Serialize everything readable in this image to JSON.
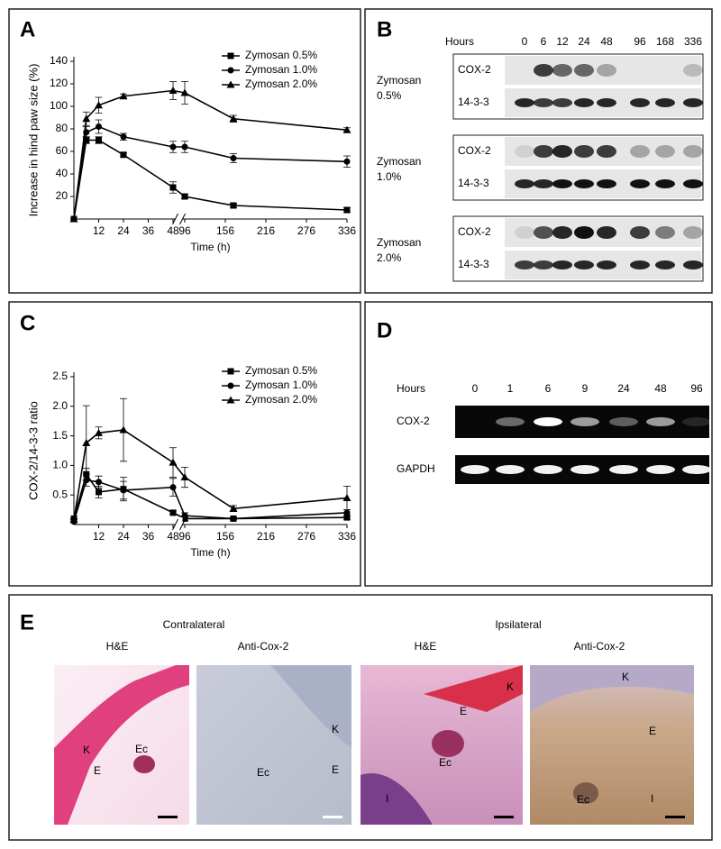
{
  "panels": {
    "a": "A",
    "b": "B",
    "c": "C",
    "d": "D",
    "e": "E"
  },
  "chart_data": [
    {
      "type": "line",
      "y_label": "Increase in hind paw size (%)",
      "x_label": "Time (h)",
      "x": [
        0,
        6,
        12,
        24,
        48,
        96,
        168,
        336
      ],
      "x_segments": [
        [
          0,
          48
        ],
        [
          96,
          336
        ]
      ],
      "xticks": [
        12,
        24,
        36,
        48,
        96,
        156,
        216,
        276,
        336
      ],
      "ylim": [
        0,
        140
      ],
      "yticks": [
        20,
        40,
        60,
        80,
        100,
        120,
        140
      ],
      "legend": "upper right",
      "series": [
        {
          "name": "Zymosan 0.5%",
          "marker": "square",
          "color": "#000000",
          "values": [
            0,
            70,
            70,
            57,
            28,
            20,
            12,
            8
          ],
          "errors": [
            0,
            3,
            3,
            2,
            5,
            2,
            2,
            2
          ]
        },
        {
          "name": "Zymosan 1.0%",
          "marker": "circle",
          "color": "#000000",
          "values": [
            0,
            77,
            82,
            73,
            64,
            64,
            54,
            51
          ],
          "errors": [
            0,
            5,
            6,
            3,
            5,
            5,
            4,
            5
          ]
        },
        {
          "name": "Zymosan 2.0%",
          "marker": "triangle",
          "color": "#000000",
          "values": [
            0,
            89,
            101,
            109,
            114,
            112,
            89,
            79
          ],
          "errors": [
            0,
            6,
            7,
            2,
            8,
            10,
            3,
            2
          ]
        }
      ]
    },
    {
      "type": "line",
      "y_label": "COX-2/14-3-3 ratio",
      "x_label": "Time (h)",
      "x": [
        0,
        6,
        12,
        24,
        48,
        96,
        168,
        336
      ],
      "x_segments": [
        [
          0,
          48
        ],
        [
          96,
          336
        ]
      ],
      "xticks": [
        12,
        24,
        36,
        48,
        96,
        156,
        216,
        276,
        336
      ],
      "ylim": [
        0,
        2.5
      ],
      "yticks": [
        0.5,
        {
          "value": 1,
          "label": "1.0"
        },
        1.5,
        {
          "value": 2,
          "label": "2.0"
        },
        2.5
      ],
      "legend": "upper right",
      "series": [
        {
          "name": "Zymosan 0.5%",
          "marker": "square",
          "color": "#000000",
          "values": [
            0.1,
            0.85,
            0.55,
            0.6,
            0.2,
            0.1,
            0.1,
            0.12
          ],
          "errors": [
            0,
            0.1,
            0.1,
            0.2,
            0.03,
            0.03,
            0.02,
            0.03
          ]
        },
        {
          "name": "Zymosan 1.0%",
          "marker": "circle",
          "color": "#000000",
          "values": [
            0.05,
            0.75,
            0.72,
            0.58,
            0.63,
            0.15,
            0.1,
            0.2
          ],
          "errors": [
            0,
            0.1,
            0.1,
            0.15,
            0.15,
            0.05,
            0.02,
            0.05
          ]
        },
        {
          "name": "Zymosan 2.0%",
          "marker": "triangle",
          "color": "#000000",
          "values": [
            0.08,
            1.38,
            1.55,
            1.6,
            1.05,
            0.8,
            0.27,
            0.45
          ],
          "errors": [
            0,
            0.63,
            0.1,
            0.53,
            0.25,
            0.17,
            0.05,
            0.2
          ]
        }
      ]
    }
  ],
  "western_blot": {
    "header": "Hours",
    "lanes": [
      "0",
      "6",
      "12",
      "24",
      "48",
      "96",
      "168",
      "336"
    ],
    "rows": [
      {
        "label": [
          "Zymosan",
          "0.5%"
        ],
        "bands": [
          "COX-2",
          "14-3-3"
        ]
      },
      {
        "label": [
          "Zymosan",
          "1.0%"
        ],
        "bands": [
          "COX-2",
          "14-3-3"
        ]
      },
      {
        "label": [
          "Zymosan",
          "2.0%"
        ],
        "bands": [
          "COX-2",
          "14-3-3"
        ]
      }
    ]
  },
  "rt_pcr": {
    "header": "Hours",
    "lanes": [
      "0",
      "1",
      "6",
      "9",
      "24",
      "48",
      "96"
    ],
    "bands": [
      "COX-2",
      "GAPDH"
    ]
  },
  "histology": {
    "groups": [
      "Contralateral",
      "Ipsilateral"
    ],
    "images": [
      {
        "title": "H&E",
        "labels": [
          "K",
          "E",
          "Ec"
        ]
      },
      {
        "title": "Anti-Cox-2",
        "labels": [
          "K",
          "E",
          "Ec"
        ]
      },
      {
        "title": "H&E",
        "labels": [
          "E",
          "K",
          "Ec",
          "I"
        ]
      },
      {
        "title": "Anti-Cox-2",
        "labels": [
          "K",
          "E",
          "Ec",
          "I"
        ]
      }
    ]
  }
}
